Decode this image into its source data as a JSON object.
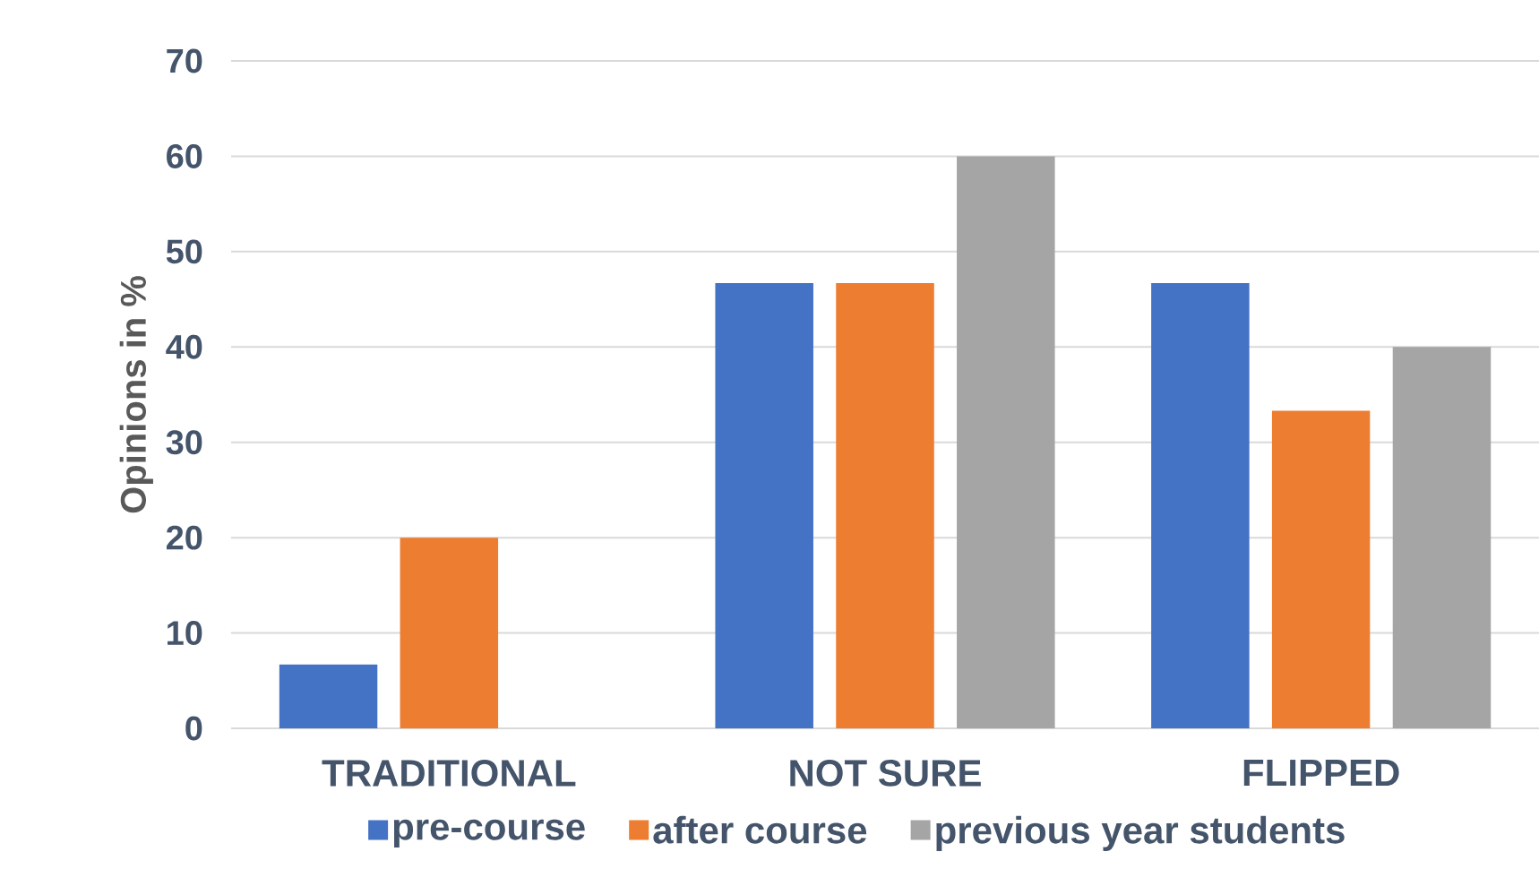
{
  "chart_data": {
    "type": "bar",
    "ylabel": "Opinions in %",
    "categories": [
      "TRADITIONAL",
      "NOT SURE",
      "FLIPPED"
    ],
    "series": [
      {
        "name": "pre-course",
        "color": "#4472c4",
        "values": [
          6.7,
          46.7,
          46.7
        ]
      },
      {
        "name": "after course",
        "color": "#ed7d31",
        "values": [
          20,
          46.7,
          33.3
        ]
      },
      {
        "name": "previous year students",
        "color": "#a5a5a5",
        "values": [
          0,
          60,
          40
        ]
      }
    ],
    "ylim": [
      0,
      70
    ],
    "yticks": [
      0,
      10,
      20,
      30,
      40,
      50,
      60,
      70
    ],
    "grid": "y",
    "legend": "bottom"
  }
}
